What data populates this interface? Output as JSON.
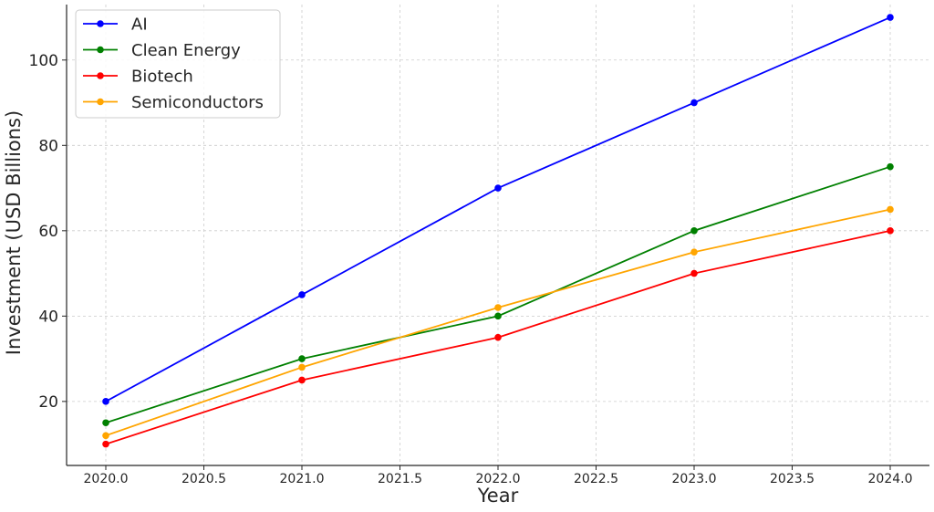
{
  "chart_data": {
    "type": "line",
    "title": "",
    "xlabel": "Year",
    "ylabel": "Investment (USD Billions)",
    "x": [
      2020,
      2021,
      2022,
      2023,
      2024
    ],
    "xlim": [
      2019.8,
      2024.2
    ],
    "ylim": [
      5,
      113
    ],
    "x_ticks": [
      "2020.0",
      "2020.5",
      "2021.0",
      "2021.5",
      "2022.0",
      "2022.5",
      "2023.0",
      "2023.5",
      "2024.0"
    ],
    "y_ticks": [
      "20",
      "40",
      "60",
      "80",
      "100"
    ],
    "grid": true,
    "legend_position": "top-left",
    "series": [
      {
        "name": "AI",
        "color": "#0000ff",
        "values": [
          20,
          45,
          70,
          90,
          110
        ]
      },
      {
        "name": "Clean Energy",
        "color": "#008000",
        "values": [
          15,
          30,
          40,
          60,
          75
        ]
      },
      {
        "name": "Biotech",
        "color": "#ff0000",
        "values": [
          10,
          25,
          35,
          50,
          60
        ]
      },
      {
        "name": "Semiconductors",
        "color": "#ffa500",
        "values": [
          12,
          28,
          42,
          55,
          65
        ]
      }
    ]
  }
}
